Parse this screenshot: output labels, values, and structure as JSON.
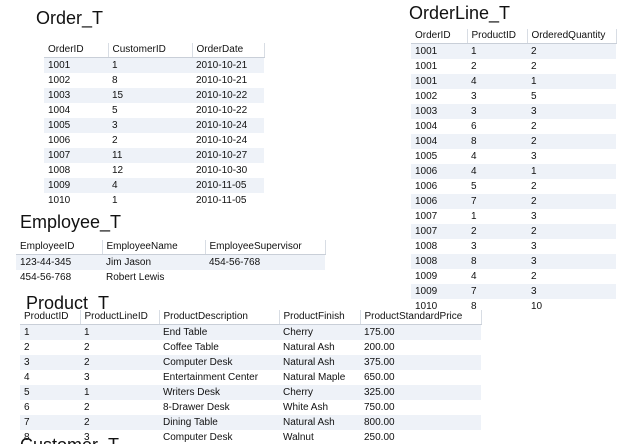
{
  "order_table": {
    "title": "Order_T",
    "columns": [
      "OrderID",
      "CustomerID",
      "OrderDate"
    ],
    "rows": [
      [
        "1001",
        "1",
        "2010-10-21"
      ],
      [
        "1002",
        "8",
        "2010-10-21"
      ],
      [
        "1003",
        "15",
        "2010-10-22"
      ],
      [
        "1004",
        "5",
        "2010-10-22"
      ],
      [
        "1005",
        "3",
        "2010-10-24"
      ],
      [
        "1006",
        "2",
        "2010-10-24"
      ],
      [
        "1007",
        "11",
        "2010-10-27"
      ],
      [
        "1008",
        "12",
        "2010-10-30"
      ],
      [
        "1009",
        "4",
        "2010-11-05"
      ],
      [
        "1010",
        "1",
        "2010-11-05"
      ]
    ]
  },
  "orderline_table": {
    "title": "OrderLine_T",
    "columns": [
      "OrderID",
      "ProductID",
      "OrderedQuantity"
    ],
    "rows": [
      [
        "1001",
        "1",
        "2"
      ],
      [
        "1001",
        "2",
        "2"
      ],
      [
        "1001",
        "4",
        "1"
      ],
      [
        "1002",
        "3",
        "5"
      ],
      [
        "1003",
        "3",
        "3"
      ],
      [
        "1004",
        "6",
        "2"
      ],
      [
        "1004",
        "8",
        "2"
      ],
      [
        "1005",
        "4",
        "3"
      ],
      [
        "1006",
        "4",
        "1"
      ],
      [
        "1006",
        "5",
        "2"
      ],
      [
        "1006",
        "7",
        "2"
      ],
      [
        "1007",
        "1",
        "3"
      ],
      [
        "1007",
        "2",
        "2"
      ],
      [
        "1008",
        "3",
        "3"
      ],
      [
        "1008",
        "8",
        "3"
      ],
      [
        "1009",
        "4",
        "2"
      ],
      [
        "1009",
        "7",
        "3"
      ],
      [
        "1010",
        "8",
        "10"
      ]
    ]
  },
  "employee_table": {
    "title": "Employee_T",
    "columns": [
      "EmployeeID",
      "EmployeeName",
      "EmployeeSupervisor"
    ],
    "rows": [
      [
        "123-44-345",
        "Jim Jason",
        "454-56-768"
      ],
      [
        "454-56-768",
        "Robert Lewis",
        ""
      ]
    ]
  },
  "product_table": {
    "title": "Product_T",
    "columns": [
      "ProductID",
      "ProductLineID",
      "ProductDescription",
      "ProductFinish",
      "ProductStandardPrice"
    ],
    "rows": [
      [
        "1",
        "1",
        "End Table",
        "Cherry",
        "175.00"
      ],
      [
        "2",
        "2",
        "Coffee Table",
        "Natural Ash",
        "200.00"
      ],
      [
        "3",
        "2",
        "Computer Desk",
        "Natural Ash",
        "375.00"
      ],
      [
        "4",
        "3",
        "Entertainment Center",
        "Natural Maple",
        "650.00"
      ],
      [
        "5",
        "1",
        "Writers Desk",
        "Cherry",
        "325.00"
      ],
      [
        "6",
        "2",
        "8-Drawer Desk",
        "White Ash",
        "750.00"
      ],
      [
        "7",
        "2",
        "Dining Table",
        "Natural Ash",
        "800.00"
      ],
      [
        "8",
        "3",
        "Computer Desk",
        "Walnut",
        "250.00"
      ]
    ]
  },
  "next_title_partial": "Customer_T"
}
